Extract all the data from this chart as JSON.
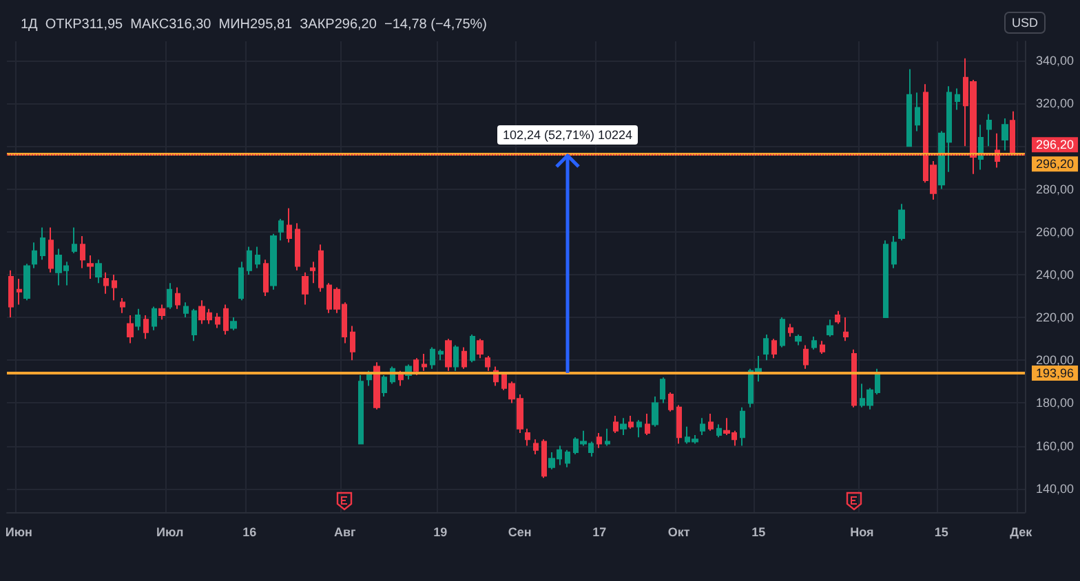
{
  "chart_data": {
    "type": "candlestick",
    "title": "1Д  ОТКР311,95  МАКС316,30  МИН295,81  ЗАКР296,20  −14,78 (−4,75%)",
    "ylabel": "USD",
    "categories": [
      null,
      "Июн",
      null,
      null,
      null,
      null,
      null,
      null,
      null,
      null,
      null,
      null,
      null,
      null,
      null,
      null,
      null,
      null,
      null,
      null,
      "Июл",
      null,
      null,
      null,
      null,
      null,
      null,
      null,
      null,
      null,
      "16",
      null,
      null,
      null,
      null,
      null,
      null,
      null,
      null,
      null,
      null,
      null,
      "Авг",
      null,
      null,
      null,
      null,
      null,
      null,
      null,
      null,
      null,
      null,
      null,
      "19",
      null,
      null,
      null,
      null,
      null,
      null,
      null,
      null,
      null,
      "Сен",
      null,
      null,
      null,
      null,
      null,
      null,
      null,
      null,
      null,
      "17",
      null,
      null,
      null,
      null,
      null,
      null,
      null,
      null,
      null,
      "Окт",
      null,
      null,
      null,
      null,
      null,
      null,
      null,
      null,
      null,
      "15",
      null,
      null,
      null,
      null,
      null,
      null,
      null,
      null,
      null,
      null,
      null,
      null,
      "Ноя",
      null,
      null,
      null,
      null,
      null,
      null,
      null,
      null,
      null,
      "15",
      null,
      null,
      null,
      null,
      null,
      null,
      null,
      null,
      null,
      "Дек"
    ],
    "ohlc": [
      [
        239,
        242,
        220,
        225
      ],
      [
        233,
        238,
        226,
        232
      ],
      [
        229,
        245,
        228,
        244
      ],
      [
        245,
        255,
        243,
        251
      ],
      [
        249,
        262,
        247,
        257
      ],
      [
        256,
        262,
        241,
        243
      ],
      [
        241,
        252,
        235,
        249
      ],
      [
        242,
        246,
        235,
        244
      ],
      [
        251,
        262,
        250,
        254
      ],
      [
        254,
        258,
        243,
        247
      ],
      [
        245,
        249,
        238,
        244
      ],
      [
        239,
        247,
        236,
        245
      ],
      [
        238,
        241,
        231,
        235
      ],
      [
        237,
        240,
        228,
        234
      ],
      [
        227,
        229,
        222,
        225
      ],
      [
        217,
        221,
        208,
        211
      ],
      [
        216,
        224,
        214,
        221
      ],
      [
        219,
        221,
        210,
        213
      ],
      [
        216,
        225,
        214,
        224
      ],
      [
        224,
        226,
        219,
        221
      ],
      [
        225,
        236,
        224,
        233
      ],
      [
        231,
        234,
        224,
        226
      ],
      [
        222,
        227,
        220,
        225
      ],
      [
        212,
        224,
        209,
        223
      ],
      [
        225,
        228,
        217,
        219
      ],
      [
        222,
        224,
        217,
        219
      ],
      [
        220,
        222,
        215,
        217
      ],
      [
        224,
        226,
        212,
        214
      ],
      [
        215,
        220,
        214,
        218
      ],
      [
        229,
        246,
        228,
        243
      ],
      [
        242,
        253,
        240,
        251
      ],
      [
        245,
        253,
        243,
        249
      ],
      [
        245,
        247,
        230,
        232
      ],
      [
        235,
        259,
        233,
        258
      ],
      [
        260,
        266,
        256,
        265
      ],
      [
        263,
        271,
        255,
        257
      ],
      [
        261,
        264,
        242,
        244
      ],
      [
        239,
        241,
        226,
        231
      ],
      [
        243,
        246,
        236,
        242
      ],
      [
        251,
        254,
        232,
        234
      ],
      [
        235,
        236,
        222,
        224
      ],
      [
        233,
        234,
        222,
        224
      ],
      [
        226,
        227,
        208,
        211
      ],
      [
        213,
        216,
        200,
        204
      ],
      [
        161,
        193,
        161,
        190
      ],
      [
        191,
        195,
        188,
        193
      ],
      [
        197,
        199,
        177,
        178
      ],
      [
        185,
        193,
        183,
        192
      ],
      [
        190,
        197,
        189,
        196
      ],
      [
        193,
        195,
        188,
        191
      ],
      [
        193,
        198,
        191,
        197
      ],
      [
        200,
        201,
        193,
        195
      ],
      [
        198,
        203,
        195,
        197
      ],
      [
        198,
        206,
        196,
        205
      ],
      [
        203,
        205,
        200,
        204
      ],
      [
        209,
        210,
        195,
        197
      ],
      [
        197,
        207,
        195,
        206
      ],
      [
        204,
        206,
        196,
        197
      ],
      [
        200,
        212,
        199,
        211
      ],
      [
        209,
        210,
        201,
        203
      ],
      [
        201,
        202,
        195,
        197
      ],
      [
        195,
        197,
        188,
        190
      ],
      [
        193,
        194,
        186,
        187
      ],
      [
        189,
        190,
        180,
        182
      ],
      [
        182,
        184,
        166,
        168
      ],
      [
        166,
        168,
        160,
        163
      ],
      [
        161,
        163,
        156,
        158
      ],
      [
        162,
        163,
        145,
        146
      ],
      [
        150,
        157,
        149,
        154
      ],
      [
        154,
        160,
        151,
        158
      ],
      [
        152,
        158,
        150,
        157
      ],
      [
        157,
        164,
        156,
        163
      ],
      [
        161,
        167,
        160,
        162
      ],
      [
        157,
        162,
        155,
        161
      ],
      [
        164,
        166,
        159,
        161
      ],
      [
        161,
        168,
        160,
        162
      ],
      [
        171,
        174,
        166,
        167
      ],
      [
        168,
        173,
        165,
        170
      ],
      [
        171,
        174,
        168,
        169
      ],
      [
        169,
        172,
        164,
        171
      ],
      [
        170,
        175,
        165,
        166
      ],
      [
        170,
        183,
        169,
        180
      ],
      [
        182,
        192,
        180,
        191
      ],
      [
        184,
        185,
        176,
        177
      ],
      [
        178,
        179,
        161,
        164
      ],
      [
        162,
        169,
        161,
        164
      ],
      [
        162,
        165,
        161,
        163
      ],
      [
        167,
        173,
        165,
        170
      ],
      [
        171,
        175,
        167,
        168
      ],
      [
        165,
        170,
        164,
        168
      ],
      [
        167,
        173,
        165,
        166
      ],
      [
        166,
        167,
        160,
        163
      ],
      [
        164,
        178,
        160,
        176
      ],
      [
        180,
        196,
        178,
        195
      ],
      [
        194,
        202,
        190,
        196
      ],
      [
        203,
        212,
        200,
        210
      ],
      [
        209,
        210,
        201,
        203
      ],
      [
        207,
        220,
        206,
        219
      ],
      [
        215,
        217,
        211,
        213
      ],
      [
        209,
        212,
        207,
        211
      ],
      [
        205,
        207,
        196,
        198
      ],
      [
        206,
        211,
        205,
        209
      ],
      [
        207,
        209,
        203,
        204
      ],
      [
        212,
        219,
        211,
        216
      ],
      [
        221,
        223,
        217,
        218
      ],
      [
        213,
        220,
        209,
        211
      ],
      [
        203,
        205,
        178,
        179
      ],
      [
        179,
        189,
        178,
        182
      ],
      [
        179,
        187,
        177,
        186
      ],
      [
        185,
        196,
        184,
        193
      ],
      [
        220,
        256,
        220,
        254
      ],
      [
        245,
        258,
        243,
        255
      ],
      [
        257,
        273,
        256,
        270
      ],
      [
        300,
        336,
        300,
        324
      ],
      [
        310,
        325,
        307,
        318
      ],
      [
        325,
        329,
        283,
        284
      ],
      [
        291,
        293,
        275,
        278
      ],
      [
        282,
        307,
        280,
        306
      ],
      [
        302,
        328,
        288,
        325
      ],
      [
        321,
        327,
        317,
        324
      ],
      [
        332,
        341,
        300,
        319
      ],
      [
        330,
        331,
        287,
        295
      ],
      [
        294,
        310,
        289,
        304
      ],
      [
        308,
        315,
        300,
        312
      ],
      [
        298,
        306,
        290,
        293
      ],
      [
        303,
        313,
        298,
        310
      ],
      [
        311.95,
        316.3,
        295.81,
        296.2
      ],
      null
    ],
    "colors": [
      "#f23645",
      "#f23645",
      "#089981",
      "#089981",
      "#089981",
      "#f23645",
      "#089981",
      "#089981",
      "#089981",
      "#f23645",
      "#f23645",
      "#089981",
      "#f23645",
      "#f23645",
      "#f23645",
      "#f23645",
      "#089981",
      "#f23645",
      "#089981",
      "#f23645",
      "#089981",
      "#f23645",
      "#089981",
      "#089981",
      "#f23645",
      "#f23645",
      "#f23645",
      "#f23645",
      "#089981",
      "#089981",
      "#089981",
      "#089981",
      "#f23645",
      "#089981",
      "#089981",
      "#f23645",
      "#f23645",
      "#f23645",
      "#f23645",
      "#f23645",
      "#f23645",
      "#f23645",
      "#f23645",
      "#f23645",
      "#089981",
      "#089981",
      "#f23645",
      "#089981",
      "#089981",
      "#f23645",
      "#089981",
      "#f23645",
      "#f23645",
      "#089981",
      "#089981",
      "#f23645",
      "#089981",
      "#f23645",
      "#089981",
      "#f23645",
      "#f23645",
      "#f23645",
      "#f23645",
      "#f23645",
      "#f23645",
      "#f23645",
      "#f23645",
      "#f23645",
      "#089981",
      "#089981",
      "#089981",
      "#089981",
      "#089981",
      "#089981",
      "#f23645",
      "#089981",
      "#f23645",
      "#089981",
      "#f23645",
      "#089981",
      "#f23645",
      "#089981",
      "#089981",
      "#f23645",
      "#f23645",
      "#089981",
      "#089981",
      "#089981",
      "#f23645",
      "#089981",
      "#f23645",
      "#f23645",
      "#089981",
      "#089981",
      "#089981",
      "#089981",
      "#f23645",
      "#089981",
      "#f23645",
      "#089981",
      "#f23645",
      "#089981",
      "#f23645",
      "#089981",
      "#f23645",
      "#f23645",
      "#f23645",
      "#089981",
      "#089981",
      "#089981",
      "#089981",
      "#089981",
      "#089981",
      "#089981",
      "#089981",
      "#f23645",
      "#f23645",
      "#089981",
      "#089981",
      "#089981",
      "#f23645",
      "#f23645",
      "#089981",
      "#089981",
      "#f23645",
      "#089981",
      "#f23645",
      null
    ],
    "ylim": [
      129,
      349
    ],
    "yticks": [
      {
        "value": 140,
        "label": "140,00"
      },
      {
        "value": 160,
        "label": "160,00"
      },
      {
        "value": 180,
        "label": "180,00"
      },
      {
        "value": 200,
        "label": "200,00"
      },
      {
        "value": 220,
        "label": "220,00"
      },
      {
        "value": 240,
        "label": "240,00"
      },
      {
        "value": 260,
        "label": "260,00"
      },
      {
        "value": 280,
        "label": "280,00"
      },
      {
        "value": 300,
        "label": null
      },
      {
        "value": 320,
        "label": "320,00"
      },
      {
        "value": 340,
        "label": "340,00"
      }
    ],
    "grid": true,
    "ref_lines": [
      {
        "axis": "y",
        "value": 296.2,
        "label": "296,20",
        "color": "#f7a531",
        "line_style": "solid"
      },
      {
        "axis": "y",
        "value": 296.2,
        "label": "296,20",
        "color": "#f23645",
        "line_style": "dotted"
      },
      {
        "axis": "y",
        "value": 193.96,
        "label": "193,96",
        "color": "#f7a531",
        "line_style": "solid"
      }
    ],
    "annotations": [
      {
        "text": "102,24 (52,71%) 10224",
        "y": 296.2
      }
    ]
  }
}
